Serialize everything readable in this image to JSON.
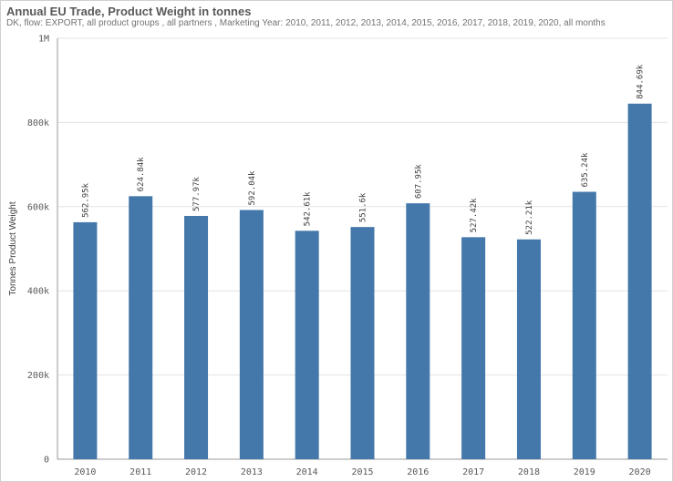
{
  "header": {
    "title": "Annual EU Trade, Product Weight in tonnes",
    "subtitle": "DK, flow: EXPORT, all product groups , all partners , Marketing Year: 2010, 2011, 2012, 2013, 2014, 2015, 2016, 2017, 2018, 2019, 2020, all months"
  },
  "colors": {
    "bar": "#4477aa",
    "grid": "#e3e3e3",
    "axis": "#999999"
  },
  "chart_data": {
    "type": "bar",
    "title": "Annual EU Trade, Product Weight in tonnes",
    "xlabel": "",
    "ylabel": "Tonnes Product Weight",
    "ylim": [
      0,
      1000000
    ],
    "yticks": [
      0,
      200000,
      400000,
      600000,
      800000,
      1000000
    ],
    "ytick_labels": [
      "0",
      "200k",
      "400k",
      "600k",
      "800k",
      "1M"
    ],
    "grid": true,
    "categories": [
      "2010",
      "2011",
      "2012",
      "2013",
      "2014",
      "2015",
      "2016",
      "2017",
      "2018",
      "2019",
      "2020"
    ],
    "values": [
      562950,
      624840,
      577970,
      592040,
      542610,
      551600,
      607950,
      527420,
      522210,
      635240,
      844690
    ],
    "labels": [
      "562.95k",
      "624.84k",
      "577.97k",
      "592.04k",
      "542.61k",
      "551.6k",
      "607.95k",
      "527.42k",
      "522.21k",
      "635.24k",
      "844.69k"
    ]
  }
}
